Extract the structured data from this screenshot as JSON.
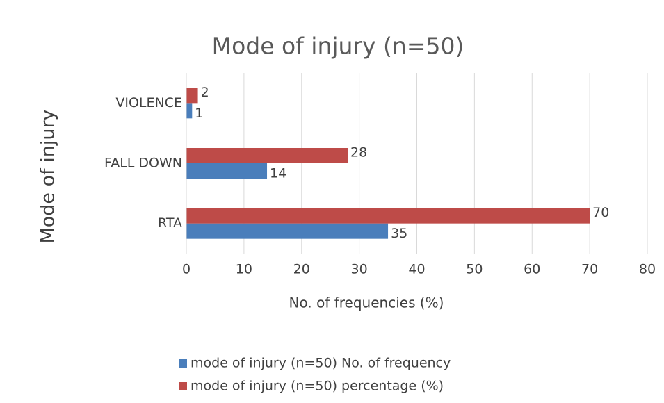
{
  "chart_data": {
    "type": "bar",
    "orientation": "horizontal",
    "title": "Mode of injury (n=50)",
    "x_label": "No. of frequencies (%)",
    "y_label": "Mode of injury",
    "categories": [
      "RTA",
      "FALL DOWN",
      "VIOLENCE"
    ],
    "series": [
      {
        "name": "mode of injury (n=50) No. of frequency",
        "color": "#4a7ebb",
        "values": [
          35,
          14,
          1
        ]
      },
      {
        "name": "mode of injury (n=50) percentage (%)",
        "color": "#be4b48",
        "values": [
          70,
          28,
          2
        ]
      }
    ],
    "xlim": [
      0,
      80
    ],
    "xticks": [
      0,
      10,
      20,
      30,
      40,
      50,
      60,
      70,
      80
    ],
    "grid": true
  }
}
